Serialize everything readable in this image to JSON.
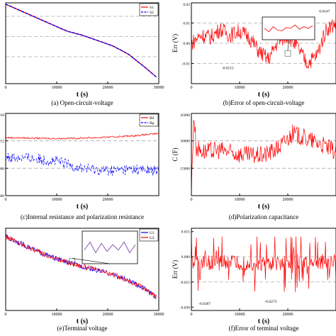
{
  "charts": [
    {
      "id": "a",
      "caption": "(a) Open-circuit-voltage",
      "type": "line",
      "xlabel": "t (s)",
      "ylabel": "",
      "xlim": [
        0,
        30000
      ],
      "ylim": [
        3.6,
        4.2
      ],
      "xticks": [
        0,
        10000,
        20000,
        30000
      ],
      "xtick_labels": [
        "0",
        "10000",
        "20000",
        "30000"
      ],
      "yticks": [],
      "ytick_labels": [],
      "hgrid": [
        4.1,
        3.95,
        3.8
      ],
      "legend": {
        "position": "top-right",
        "items": [
          {
            "label": "S1",
            "color": "#ff0000",
            "style": "solid"
          },
          {
            "label": "S2",
            "color": "#0000ff",
            "style": "dash"
          }
        ]
      },
      "series": [
        {
          "name": "S1",
          "color": "#ff0000",
          "style": "solid",
          "x": [
            0,
            3000,
            6000,
            9000,
            12000,
            15000,
            18000,
            21000,
            24000,
            27000,
            29500
          ],
          "y": [
            4.19,
            4.14,
            4.09,
            4.04,
            3.99,
            3.96,
            3.92,
            3.88,
            3.82,
            3.73,
            3.65
          ]
        },
        {
          "name": "S2",
          "color": "#0000ff",
          "style": "dash",
          "x": [
            0,
            3000,
            6000,
            9000,
            12000,
            15000,
            18000,
            21000,
            24000,
            27000,
            29500
          ],
          "y": [
            4.19,
            4.14,
            4.09,
            4.04,
            3.99,
            3.96,
            3.92,
            3.88,
            3.82,
            3.73,
            3.65
          ]
        }
      ]
    },
    {
      "id": "b",
      "caption": "(b)Error of open-circuit-voltage",
      "type": "line",
      "xlabel": "t (s)",
      "ylabel": "Err (V)",
      "xlim": [
        0,
        30000
      ],
      "ylim": [
        -0.02,
        0.02
      ],
      "xticks": [
        0,
        10000,
        20000
      ],
      "xtick_labels": [
        "0",
        "10000",
        "20000"
      ],
      "yticks": [
        0.02,
        0.01,
        0.0,
        -0.01
      ],
      "ytick_labels": [
        "0.02",
        "0.01",
        "0.00",
        "-0.01"
      ],
      "hgrid": [
        0.01,
        0.0,
        -0.01
      ],
      "annotations": [
        {
          "text": "0.0147",
          "x": 26500,
          "y": 0.0153
        },
        {
          "text": "-0.0115",
          "x": 6300,
          "y": -0.0128
        }
      ],
      "inset": {
        "label": "",
        "trace": [
          0.5,
          0.3,
          0.6,
          0.4,
          0.35,
          0.55,
          0.5,
          0.7,
          0.45,
          0.6,
          0.5,
          0.65
        ]
      },
      "series": [
        {
          "name": "",
          "color": "#ff0000",
          "style": "solid",
          "x": [
            0,
            2000,
            4000,
            6000,
            8000,
            10000,
            12000,
            14000,
            16000,
            18000,
            20000,
            22000,
            24000,
            26000,
            28000,
            30000
          ],
          "y": [
            0.0,
            0.004,
            0.003,
            0.007,
            0.004,
            0.006,
            0.003,
            -0.004,
            -0.008,
            0.001,
            0.004,
            -0.002,
            -0.01,
            -0.006,
            0.007,
            0.01
          ]
        }
      ]
    },
    {
      "id": "c",
      "caption": "(c)Internal resistance and polarization resistance",
      "type": "line",
      "xlabel": "t (s)",
      "ylabel": "",
      "xlim": [
        0,
        30000
      ],
      "ylim": [
        0.0,
        0.018
      ],
      "xticks": [
        0,
        10000,
        20000
      ],
      "xtick_labels": [
        "0",
        "10000",
        "20000"
      ],
      "yticks": [
        0.018,
        0.012,
        0.006,
        0.0
      ],
      "ytick_labels": [
        "018",
        "012",
        "006",
        "000"
      ],
      "hgrid": [
        0.012,
        0.006
      ],
      "legend": {
        "position": "top-right",
        "items": [
          {
            "label": "R0",
            "color": "#ff0000",
            "style": "solid"
          },
          {
            "label": "Rp",
            "color": "#0000ff",
            "style": "dash"
          }
        ]
      },
      "series": [
        {
          "name": "R0",
          "color": "#ff0000",
          "style": "solid",
          "x": [
            0,
            5000,
            10000,
            15000,
            20000,
            25000,
            30000
          ],
          "y": [
            0.0127,
            0.0126,
            0.0125,
            0.0126,
            0.0128,
            0.0131,
            0.0136
          ]
        },
        {
          "name": "Rp",
          "color": "#0000ff",
          "style": "dash",
          "x": [
            0,
            5000,
            10000,
            15000,
            20000,
            25000,
            30000
          ],
          "y": [
            0.0085,
            0.0082,
            0.0075,
            0.006,
            0.0055,
            0.0058,
            0.0054
          ]
        }
      ]
    },
    {
      "id": "d",
      "caption": "(d)Polarization capacitance",
      "type": "line",
      "xlabel": "t (s)",
      "ylabel": "C (F)",
      "xlim": [
        0,
        30000
      ],
      "ylim": [
        0,
        45000
      ],
      "xticks": [
        0,
        10000,
        20000
      ],
      "xtick_labels": [
        "0",
        "10000",
        "20000"
      ],
      "yticks": [
        45000,
        30000,
        15000
      ],
      "ytick_labels": [
        "45000",
        "30000",
        "15000"
      ],
      "hgrid": [
        30000,
        15000
      ],
      "series": [
        {
          "name": "",
          "color": "#ff0000",
          "style": "solid",
          "x": [
            0,
            500,
            1000,
            3000,
            6000,
            9000,
            12000,
            15000,
            18000,
            21000,
            24000,
            27000,
            30000
          ],
          "y": [
            2000,
            45000,
            26000,
            24000,
            25000,
            23000,
            22000,
            22000,
            26000,
            34000,
            31000,
            28000,
            24000
          ]
        }
      ]
    },
    {
      "id": "e",
      "caption": "(e)Terminal voltage",
      "type": "line",
      "xlabel": "t (s)",
      "ylabel": "",
      "xlim": [
        0,
        30000
      ],
      "ylim": [
        3.5,
        4.3
      ],
      "xticks": [
        0,
        10000,
        20000,
        30000
      ],
      "xtick_labels": [
        "0",
        "10000",
        "20000",
        "30000"
      ],
      "yticks": [],
      "ytick_labels": [],
      "hgrid": [],
      "legend": {
        "position": "top-right",
        "items": [
          {
            "label": "U1",
            "color": "#0000ff",
            "style": "solid"
          },
          {
            "label": "U2",
            "color": "#ff0000",
            "style": "solid"
          }
        ]
      },
      "inset": {
        "label": "",
        "trace": [
          0.4,
          0.7,
          0.3,
          0.65,
          0.35,
          0.6,
          0.4,
          0.7,
          0.3,
          0.6
        ]
      },
      "series": [
        {
          "name": "U1",
          "color": "#0000ff",
          "style": "solid",
          "x": [
            0,
            3000,
            6000,
            9000,
            12000,
            15000,
            18000,
            21000,
            24000,
            27000,
            29500
          ],
          "y": [
            4.22,
            4.15,
            4.08,
            4.02,
            3.97,
            3.93,
            3.89,
            3.85,
            3.79,
            3.72,
            3.63
          ]
        },
        {
          "name": "U2",
          "color": "#ff0000",
          "style": "solid",
          "x": [
            0,
            3000,
            6000,
            9000,
            12000,
            15000,
            18000,
            21000,
            24000,
            27000,
            29500
          ],
          "y": [
            4.22,
            4.15,
            4.08,
            4.02,
            3.97,
            3.93,
            3.89,
            3.85,
            3.79,
            3.72,
            3.63
          ]
        }
      ]
    },
    {
      "id": "f",
      "caption": "(f)Error of terminal voltage",
      "type": "line",
      "xlabel": "t (s)",
      "ylabel": "Err (V)",
      "xlim": [
        0,
        30000
      ],
      "ylim": [
        -0.032,
        0.017
      ],
      "xticks": [
        0,
        10000,
        20000
      ],
      "xtick_labels": [
        "0",
        "10000",
        "20000"
      ],
      "yticks": [
        0.015,
        0.0,
        -0.015,
        -0.03
      ],
      "ytick_labels": [
        "0.015",
        "0.000",
        "-0.015",
        "-0.030"
      ],
      "hgrid": [
        0.0,
        -0.015
      ],
      "annotations": [
        {
          "text": "-0.0287",
          "x": 1500,
          "y": -0.0287
        },
        {
          "text": "-0.0273",
          "x": 15200,
          "y": -0.0273
        }
      ],
      "series": [
        {
          "name": "",
          "color": "#ff0000",
          "style": "solid",
          "x": [
            0,
            5000,
            10000,
            15000,
            20000,
            25000,
            30000
          ],
          "y": [
            -0.004,
            -0.003,
            -0.003,
            -0.004,
            -0.003,
            -0.003,
            -0.003
          ]
        }
      ]
    }
  ]
}
